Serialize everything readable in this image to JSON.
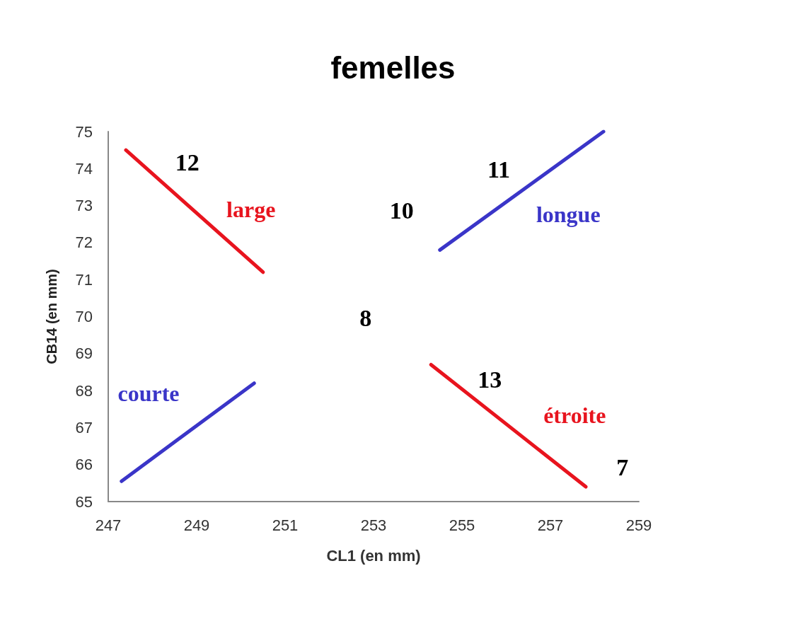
{
  "chart_data": {
    "type": "line",
    "title": "femelles",
    "xlabel": "CL1 (en mm)",
    "ylabel": "CB14 (en mm)",
    "xlim": [
      247,
      259
    ],
    "xticks": [
      247,
      249,
      251,
      253,
      255,
      257,
      259
    ],
    "ylim": [
      65,
      75
    ],
    "yticks": [
      65,
      66,
      67,
      68,
      69,
      70,
      71,
      72,
      73,
      74,
      75
    ],
    "grid": false,
    "legend": false,
    "marker": "none",
    "line_style": "solid",
    "series": [
      {
        "name": "large",
        "color": "#e8141e",
        "x": [
          247.4,
          250.5
        ],
        "values": [
          74.5,
          71.2
        ]
      },
      {
        "name": "courte",
        "color": "#3a35c8",
        "x": [
          247.3,
          250.3
        ],
        "values": [
          65.55,
          68.2
        ]
      },
      {
        "name": "longue",
        "color": "#3a35c8",
        "x": [
          254.5,
          258.2
        ],
        "values": [
          71.8,
          75
        ]
      },
      {
        "name": "étroite",
        "color": "#e8141e",
        "x": [
          254.3,
          257.8
        ],
        "values": [
          68.7,
          65.4
        ]
      }
    ],
    "annotations": [
      "12",
      "10",
      "11",
      "8",
      "13",
      "7"
    ]
  }
}
